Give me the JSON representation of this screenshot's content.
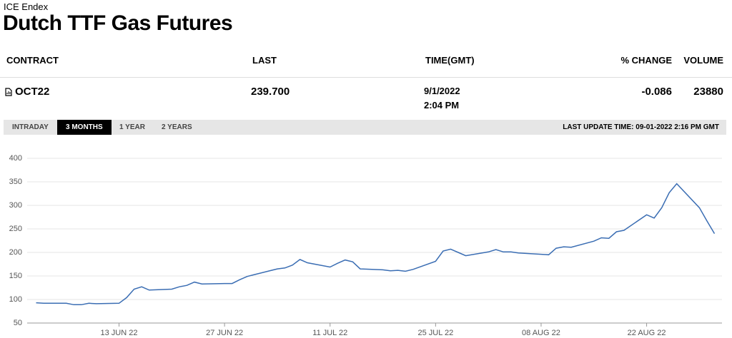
{
  "header": {
    "subtitle": "ICE Endex",
    "title": "Dutch TTF Gas Futures"
  },
  "table": {
    "columns": [
      "CONTRACT",
      "LAST",
      "TIME(GMT)",
      "% CHANGE",
      "VOLUME"
    ],
    "rows": [
      {
        "contract": "OCT22",
        "last": "239.700",
        "date": "9/1/2022",
        "time": "2:04 PM",
        "change": "-0.086",
        "volume": "23880"
      }
    ]
  },
  "tabs": {
    "items": [
      "INTRADAY",
      "3 MONTHS",
      "1 YEAR",
      "2 YEARS"
    ],
    "active": 1,
    "last_update": "LAST UPDATE TIME: 09-01-2022 2:16 PM GMT"
  },
  "chart_data": {
    "type": "line",
    "x": [
      "2022-06-02",
      "2022-06-03",
      "2022-06-06",
      "2022-06-07",
      "2022-06-08",
      "2022-06-09",
      "2022-06-10",
      "2022-06-13",
      "2022-06-14",
      "2022-06-15",
      "2022-06-16",
      "2022-06-17",
      "2022-06-20",
      "2022-06-21",
      "2022-06-22",
      "2022-06-23",
      "2022-06-24",
      "2022-06-27",
      "2022-06-28",
      "2022-06-29",
      "2022-06-30",
      "2022-07-01",
      "2022-07-04",
      "2022-07-05",
      "2022-07-06",
      "2022-07-07",
      "2022-07-08",
      "2022-07-11",
      "2022-07-12",
      "2022-07-13",
      "2022-07-14",
      "2022-07-15",
      "2022-07-18",
      "2022-07-19",
      "2022-07-20",
      "2022-07-21",
      "2022-07-22",
      "2022-07-25",
      "2022-07-26",
      "2022-07-27",
      "2022-07-28",
      "2022-07-29",
      "2022-08-01",
      "2022-08-02",
      "2022-08-03",
      "2022-08-04",
      "2022-08-05",
      "2022-08-08",
      "2022-08-09",
      "2022-08-10",
      "2022-08-11",
      "2022-08-12",
      "2022-08-15",
      "2022-08-16",
      "2022-08-17",
      "2022-08-18",
      "2022-08-19",
      "2022-08-22",
      "2022-08-23",
      "2022-08-24",
      "2022-08-25",
      "2022-08-26",
      "2022-08-29",
      "2022-08-30",
      "2022-08-31"
    ],
    "series": [
      {
        "name": "OCT22",
        "color": "#3a6db3",
        "values": [
          93,
          92,
          92,
          89,
          89,
          92,
          91,
          92,
          104,
          122,
          127,
          120,
          122,
          127,
          130,
          137,
          133,
          134,
          134,
          142,
          149,
          153,
          165,
          167,
          173,
          185,
          178,
          169,
          177,
          184,
          180,
          165,
          163,
          161,
          162,
          160,
          164,
          181,
          203,
          207,
          200,
          193,
          201,
          206,
          201,
          201,
          199,
          196,
          195,
          209,
          212,
          211,
          224,
          231,
          230,
          244,
          247,
          280,
          273,
          295,
          327,
          346,
          295,
          267,
          240
        ]
      }
    ],
    "xlim": [
      "2022-06-01",
      "2022-09-01"
    ],
    "xticks": [
      {
        "value": "2022-06-13",
        "label": "13 JUN 22"
      },
      {
        "value": "2022-06-27",
        "label": "27 JUN 22"
      },
      {
        "value": "2022-07-11",
        "label": "11 JUL 22"
      },
      {
        "value": "2022-07-25",
        "label": "25 JUL 22"
      },
      {
        "value": "2022-08-08",
        "label": "08 AUG 22"
      },
      {
        "value": "2022-08-22",
        "label": "22 AUG 22"
      }
    ],
    "ylim": [
      50,
      400
    ],
    "yticks": [
      50,
      100,
      150,
      200,
      250,
      300,
      350,
      400
    ],
    "grid": true
  }
}
